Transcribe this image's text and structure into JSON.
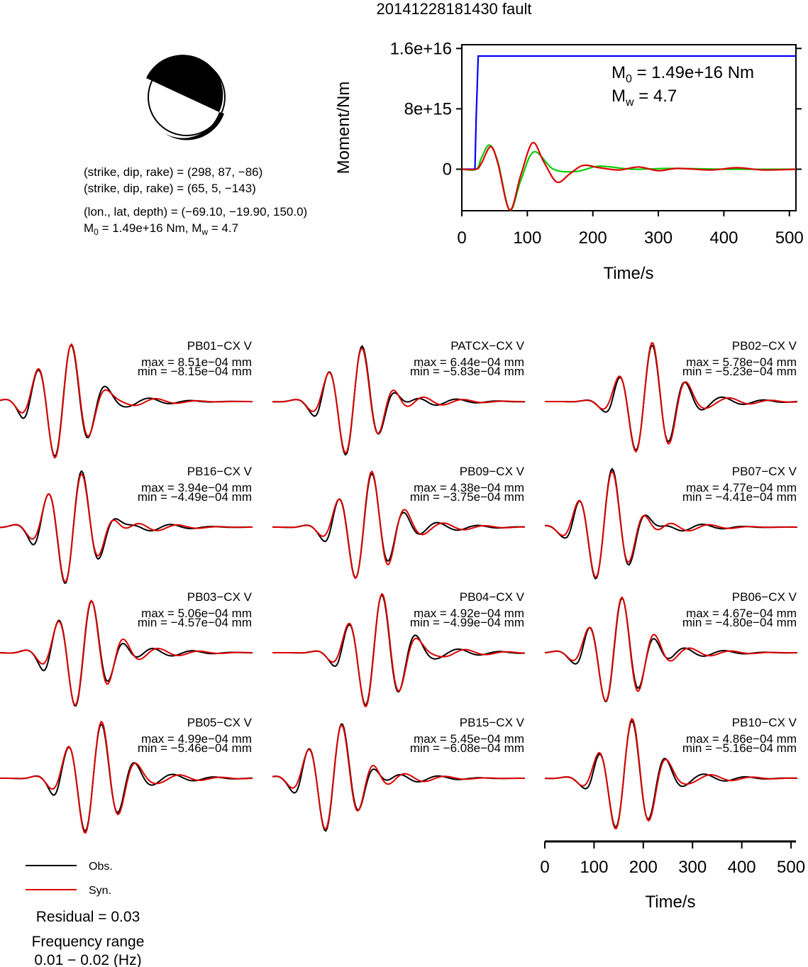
{
  "title": "20141228181430 fault",
  "beachball": {
    "line1": "(strike, dip, rake) = (298, 87, −86)",
    "line2": "(strike, dip, rake) = (65, 5, −143)",
    "line3": "(lon., lat, depth) = (−69.10, −19.90, 150.0)",
    "m0_prefix": "M",
    "m0_sub": "0",
    "m0_rest": " = 1.49e+16 Nm, M",
    "mw_sub": "w",
    "mw_rest": " = 4.7"
  },
  "moment_panel": {
    "ylabel": "Moment/Nm",
    "xlabel": "Time/s",
    "yticks": [
      "0",
      "8e+15",
      "1.6e+16"
    ],
    "ytick_values": [
      0,
      8000000000000000.0,
      1.6e+16
    ],
    "xticks": [
      "0",
      "100",
      "200",
      "300",
      "400",
      "500"
    ],
    "xtick_values": [
      0,
      100,
      200,
      300,
      400,
      500
    ],
    "m0_label": "M",
    "m0_sub": "0",
    "m0_value": " = 1.49e+16 Nm",
    "mw_label": "M",
    "mw_sub": "w",
    "mw_value": " = 4.7",
    "colors": {
      "moment": "#0000ff",
      "obs_stf": "#00cc00",
      "syn_stf": "#dd0000"
    }
  },
  "chart_data": [
    {
      "type": "line",
      "title": "",
      "xlabel": "Time/s",
      "ylabel": "Moment/Nm",
      "xlim": [
        0,
        510
      ],
      "ylim": [
        -5500000000000000.0,
        1.65e+16
      ],
      "series": [
        {
          "name": "",
          "color": "#0000ff",
          "x": [
            0,
            20,
            22,
            25,
            510
          ],
          "y": [
            0,
            0,
            7000000000000000.0,
            1.5e+16,
            1.5e+16
          ]
        },
        {
          "name": "",
          "color": "#00cc00",
          "x": [
            0,
            22,
            30,
            42,
            55,
            73,
            90,
            110,
            140,
            175,
            210,
            260,
            320,
            400,
            510
          ],
          "y": [
            0,
            0,
            1500000000000000.0,
            3200000000000000.0,
            1000000000000000.0,
            -5400000000000000.0,
            -1500000000000000.0,
            2300000000000000.0,
            0,
            -300000000000000.0,
            400000000000000.0,
            0,
            100000000000000.0,
            0,
            0
          ]
        },
        {
          "name": "",
          "color": "#dd0000",
          "x": [
            0,
            22,
            30,
            44,
            55,
            73,
            90,
            108,
            125,
            145,
            165,
            185,
            210,
            240,
            270,
            300,
            330,
            380,
            420,
            460,
            510
          ],
          "y": [
            0,
            0,
            800000000000000.0,
            3000000000000000.0,
            800000000000000.0,
            -5400000000000000.0,
            -800000000000000.0,
            3500000000000000.0,
            1000000000000000.0,
            -1700000000000000.0,
            -600000000000000.0,
            500000000000000.0,
            200000000000000.0,
            -100000000000000.0,
            300000000000000.0,
            -200000000000000.0,
            100000000000000.0,
            -100000000000000.0,
            200000000000000.0,
            -100000000000000.0,
            0
          ]
        }
      ]
    }
  ],
  "stations": [
    {
      "name": "PB01−CX V",
      "max": "max = 8.51e−04 mm",
      "min": "min = −8.15e−04 mm"
    },
    {
      "name": "PATCX−CX V",
      "max": "max = 6.44e−04 mm",
      "min": "min = −5.83e−04 mm"
    },
    {
      "name": "PB02−CX V",
      "max": "max = 5.78e−04 mm",
      "min": "min = −5.23e−04 mm"
    },
    {
      "name": "PB16−CX V",
      "max": "max = 3.94e−04 mm",
      "min": "min = −4.49e−04 mm"
    },
    {
      "name": "PB09−CX V",
      "max": "max = 4.38e−04 mm",
      "min": "min = −3.75e−04 mm"
    },
    {
      "name": "PB07−CX V",
      "max": "max = 4.77e−04 mm",
      "min": "min = −4.41e−04 mm"
    },
    {
      "name": "PB03−CX V",
      "max": "max = 5.06e−04 mm",
      "min": "min = −4.57e−04 mm"
    },
    {
      "name": "PB04−CX V",
      "max": "max = 4.92e−04 mm",
      "min": "min = −4.99e−04 mm"
    },
    {
      "name": "PB06−CX V",
      "max": "max = 4.67e−04 mm",
      "min": "min = −4.80e−04 mm"
    },
    {
      "name": "PB05−CX V",
      "max": "max = 4.99e−04 mm",
      "min": "min = −5.46e−04 mm"
    },
    {
      "name": "PB15−CX V",
      "max": "max = 5.45e−04 mm",
      "min": "min = −6.08e−04 mm"
    },
    {
      "name": "PB10−CX V",
      "max": "max = 4.86e−04 mm",
      "min": "min = −5.16e−04 mm"
    }
  ],
  "wave_axis": {
    "xlabel": "Time/s",
    "xticks": [
      "0",
      "100",
      "200",
      "300",
      "400",
      "500"
    ],
    "xtick_values": [
      0,
      100,
      200,
      300,
      400,
      500
    ]
  },
  "legend": {
    "obs": "Obs.",
    "syn": "Syn.",
    "obs_color": "#000000",
    "syn_color": "#dd0000"
  },
  "residual": "Residual = 0.03",
  "freq_label": "Frequency range",
  "freq_value": "0.01 − 0.02 (Hz)"
}
